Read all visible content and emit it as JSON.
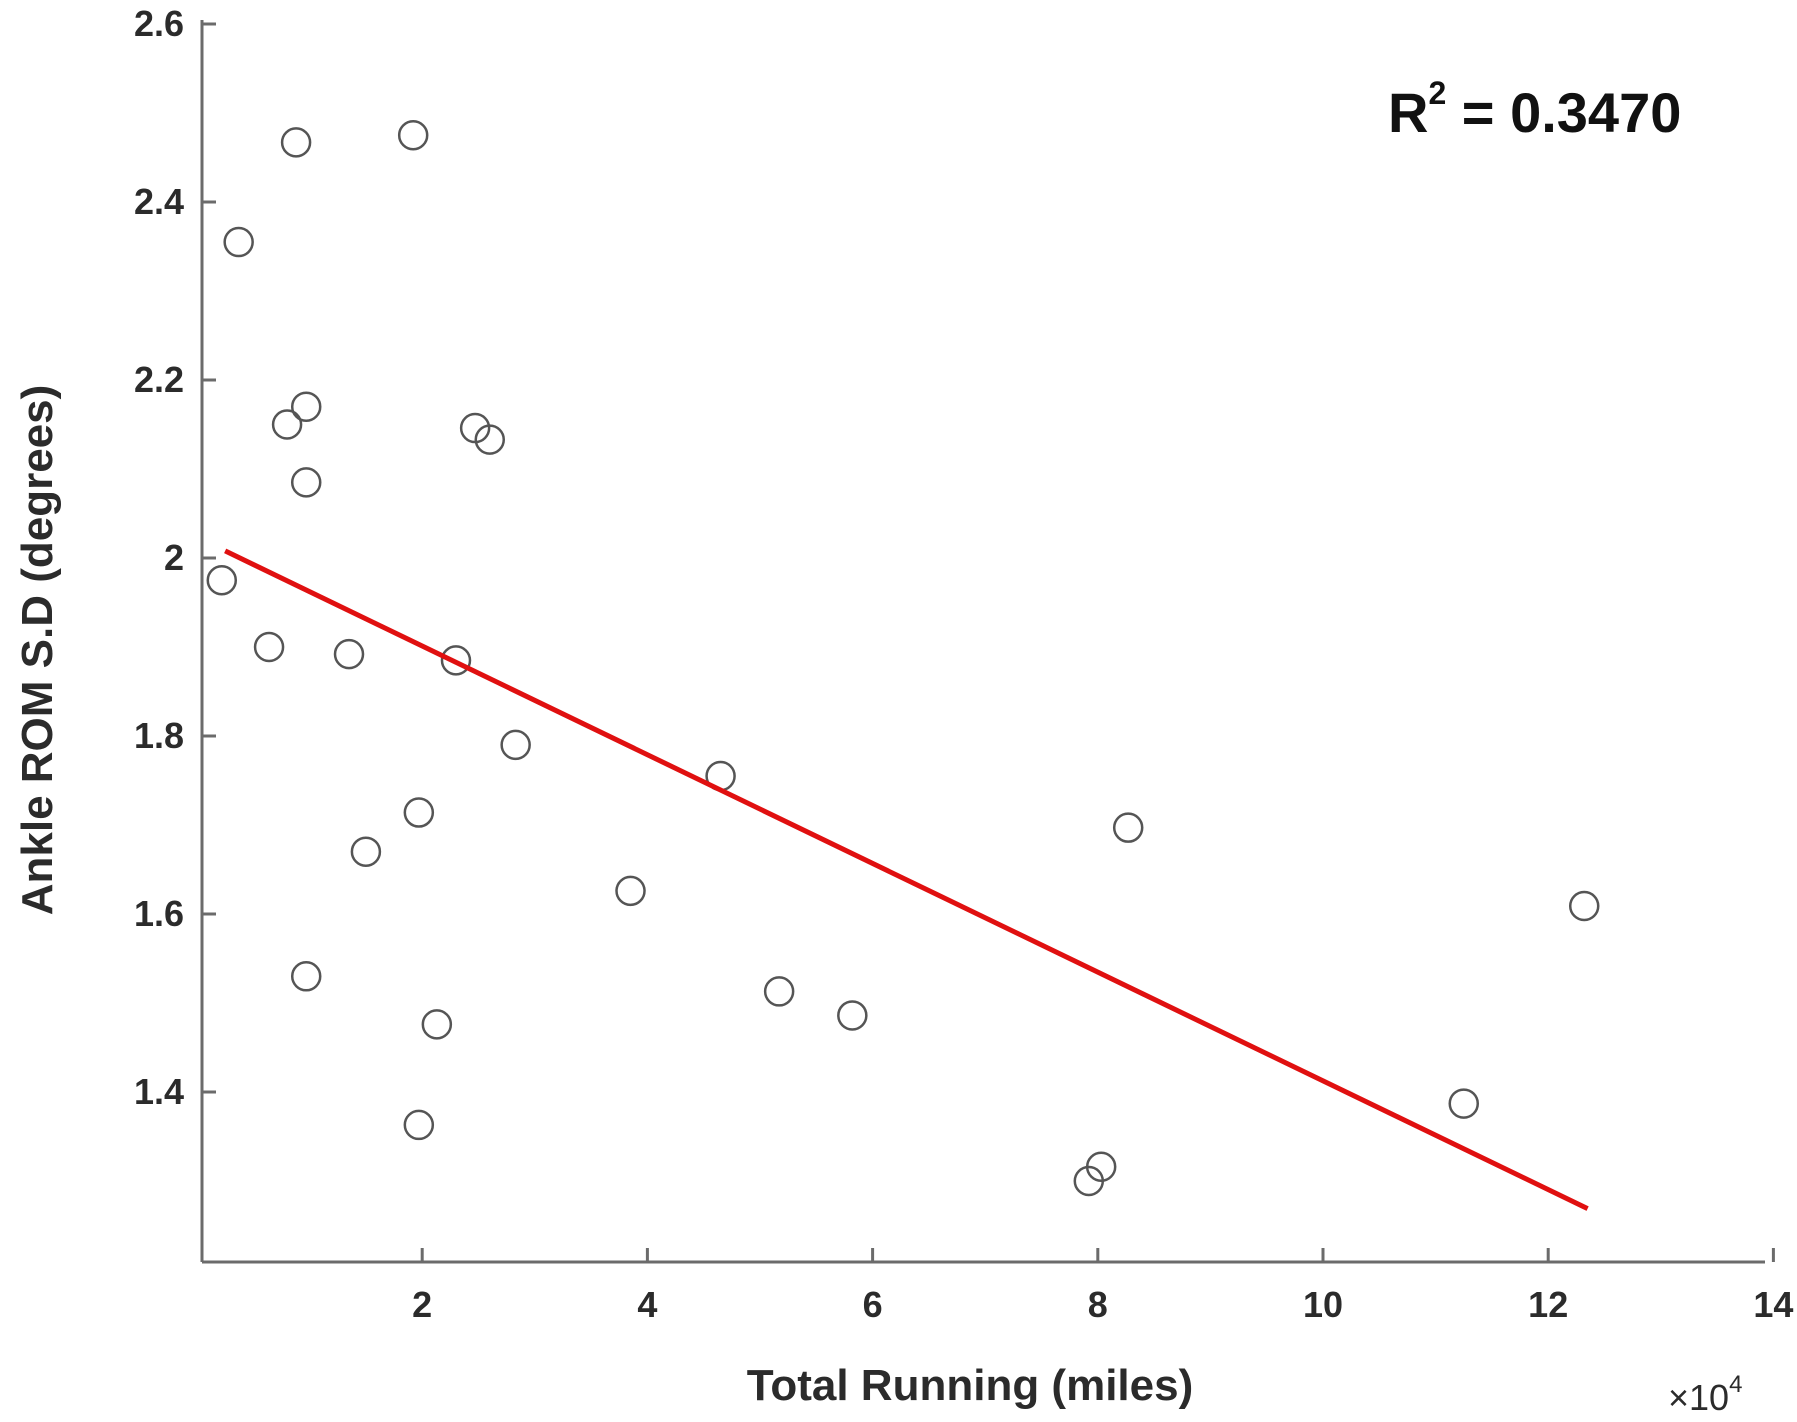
{
  "chart_data": {
    "type": "scatter",
    "xlabel": "Total Running (miles)",
    "ylabel": "Ankle ROM S.D (degrees)",
    "x_multiplier_label": {
      "base": "×10",
      "exponent": "4"
    },
    "annotation": {
      "prefix": "R",
      "superscript": "2",
      "suffix": " = 0.3470"
    },
    "xlim": [
      0,
      14
    ],
    "ylim": [
      1.22,
      2.62
    ],
    "xticks": [
      2,
      4,
      6,
      8,
      10,
      12,
      14
    ],
    "yticks": [
      1.4,
      1.6,
      1.8,
      2,
      2.2,
      2.4,
      2.6
    ],
    "ytick_labels": [
      "1.4",
      "1.6",
      "1.8",
      "2",
      "2.2",
      "2.4",
      "2.6"
    ],
    "grid": false,
    "marker": "open-circle",
    "points": [
      {
        "x": 0.22,
        "y": 1.975
      },
      {
        "x": 0.37,
        "y": 2.355
      },
      {
        "x": 0.64,
        "y": 1.9
      },
      {
        "x": 0.8,
        "y": 2.15
      },
      {
        "x": 0.88,
        "y": 2.467
      },
      {
        "x": 0.97,
        "y": 2.17
      },
      {
        "x": 0.97,
        "y": 2.085
      },
      {
        "x": 0.97,
        "y": 1.53
      },
      {
        "x": 1.35,
        "y": 1.892
      },
      {
        "x": 1.5,
        "y": 1.67
      },
      {
        "x": 1.92,
        "y": 2.475
      },
      {
        "x": 1.97,
        "y": 1.714
      },
      {
        "x": 1.97,
        "y": 1.363
      },
      {
        "x": 2.13,
        "y": 1.476
      },
      {
        "x": 2.3,
        "y": 1.885
      },
      {
        "x": 2.47,
        "y": 2.146
      },
      {
        "x": 2.6,
        "y": 2.133
      },
      {
        "x": 2.83,
        "y": 1.79
      },
      {
        "x": 3.85,
        "y": 1.626
      },
      {
        "x": 4.65,
        "y": 1.755
      },
      {
        "x": 5.17,
        "y": 1.513
      },
      {
        "x": 5.82,
        "y": 1.486
      },
      {
        "x": 7.92,
        "y": 1.3
      },
      {
        "x": 8.03,
        "y": 1.316
      },
      {
        "x": 8.27,
        "y": 1.697
      },
      {
        "x": 11.25,
        "y": 1.387
      },
      {
        "x": 12.32,
        "y": 1.609
      }
    ],
    "fit_line": {
      "x": [
        0.25,
        12.35
      ],
      "y": [
        2.008,
        1.269
      ],
      "color": "#e01010"
    },
    "colors": {
      "axis": "#6b6b6b",
      "marker": "#555555",
      "fit": "#e01010"
    }
  }
}
